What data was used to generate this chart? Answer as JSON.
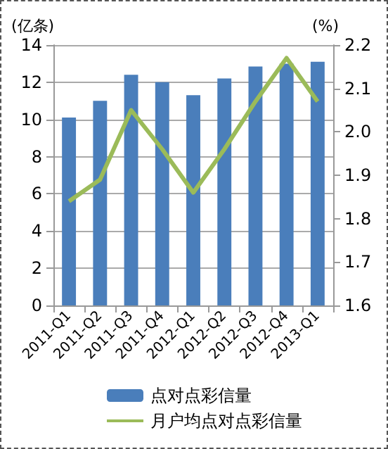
{
  "chart_data": {
    "type": "bar",
    "categories": [
      "2011-Q1",
      "2011-Q2",
      "2011-Q3",
      "2011-Q4",
      "2012-Q1",
      "2012-Q2",
      "2012-Q3",
      "2012-Q4",
      "2013-Q1"
    ],
    "series": [
      {
        "name": "点对点彩信量",
        "color": "#4a7ebb",
        "values": [
          10.1,
          11.0,
          12.4,
          12.0,
          11.3,
          12.2,
          12.85,
          13.0,
          13.1
        ]
      },
      {
        "name": "月户均点对点彩信量",
        "type": "line",
        "axis": "y2",
        "color": "#9bbb59",
        "values": [
          1.84,
          1.89,
          2.05,
          1.96,
          1.86,
          1.96,
          2.07,
          2.17,
          2.07
        ]
      }
    ],
    "ylabel": "(亿条)",
    "y2label": "(%)",
    "ylim": [
      0,
      14
    ],
    "yticks": [
      0,
      2,
      4,
      6,
      8,
      10,
      12,
      14
    ],
    "y2lim": [
      1.6,
      2.2
    ],
    "y2ticks": [
      {
        "value": 1.6,
        "label": "1.6"
      },
      {
        "value": 1.7,
        "label": "1.7"
      },
      {
        "value": 1.8,
        "label": "1.8"
      },
      {
        "value": 1.9,
        "label": "1.9"
      },
      {
        "value": 2.0,
        "label": "2.0"
      },
      {
        "value": 2.1,
        "label": "2.1"
      },
      {
        "value": 2.2,
        "label": "2.2"
      }
    ],
    "grid": "y",
    "legend": "bottom",
    "marker": "none",
    "line_style": "solid"
  }
}
